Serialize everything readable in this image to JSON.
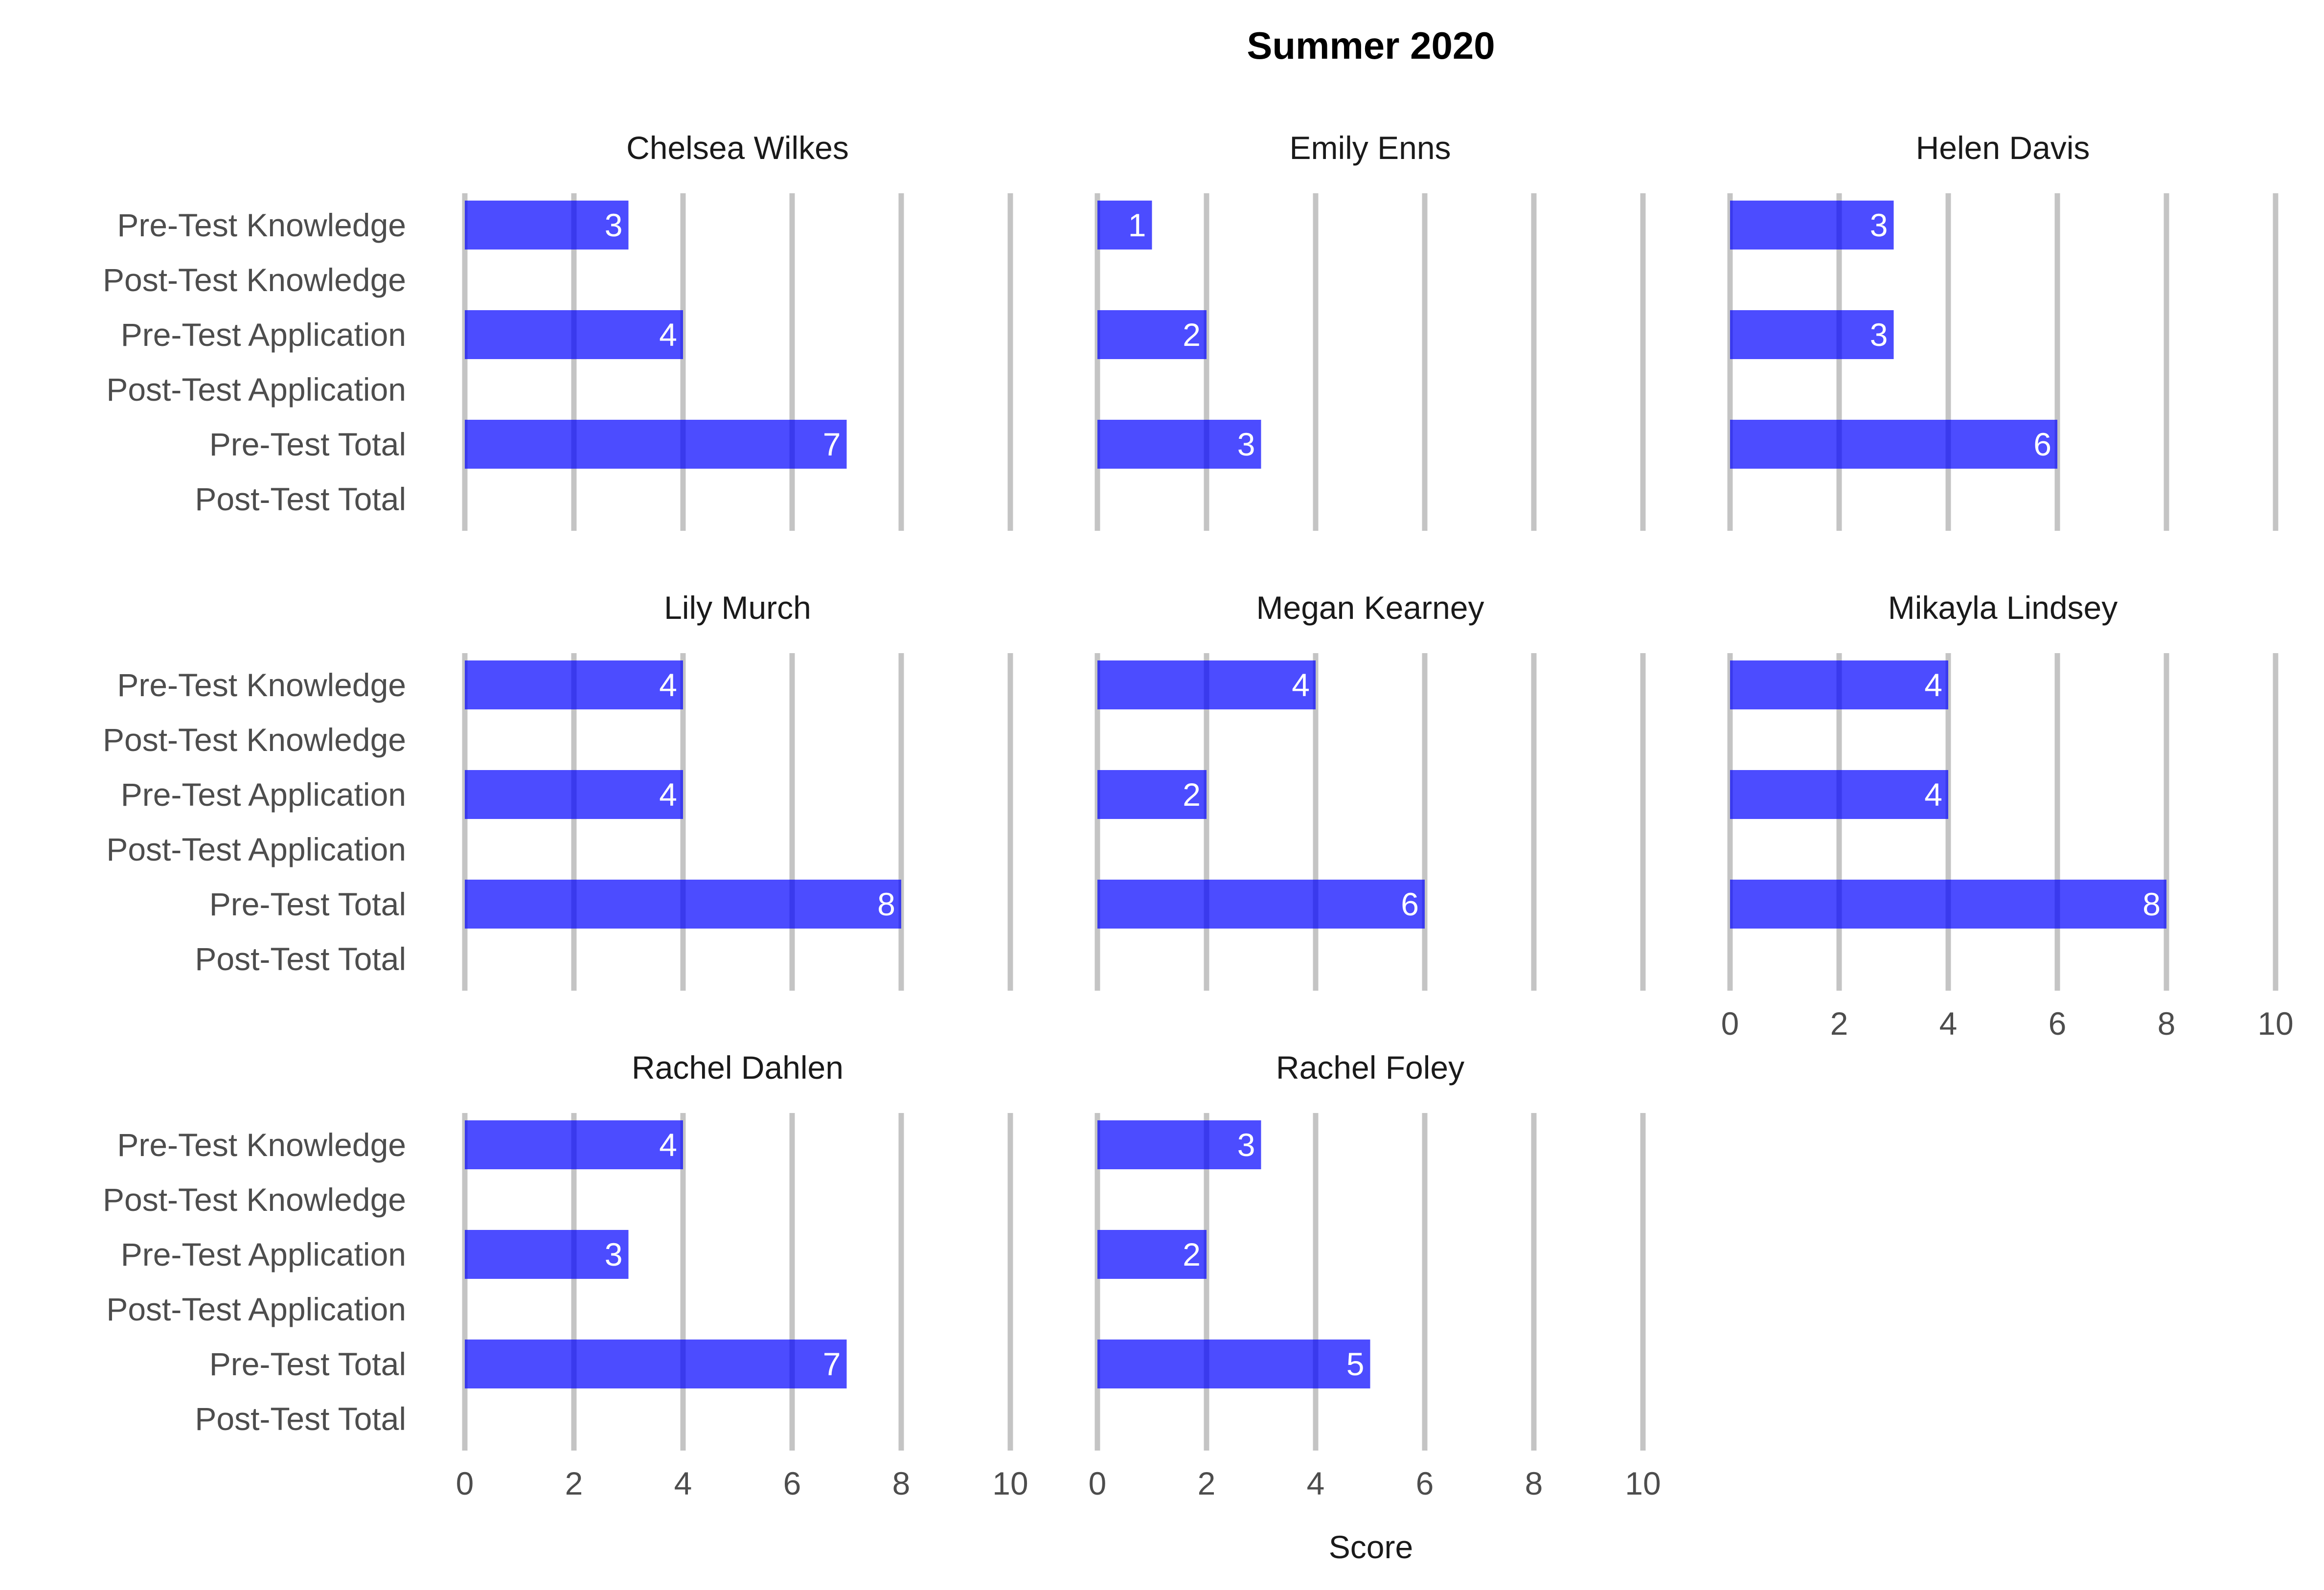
{
  "chart_data": {
    "type": "bar",
    "orientation": "horizontal",
    "title": "Summer 2020",
    "xlabel": "Score",
    "xlim": [
      0,
      10
    ],
    "xticks": [
      "0",
      "2",
      "4",
      "6",
      "8",
      "10"
    ],
    "grid": "vertical",
    "bar_color": "#0000ff",
    "categories": [
      "Pre-Test Knowledge",
      "Post-Test Knowledge",
      "Pre-Test Application",
      "Post-Test Application",
      "Pre-Test Total",
      "Post-Test Total"
    ],
    "panels": [
      {
        "name": "Chelsea Wilkes",
        "values": [
          3,
          null,
          4,
          null,
          7,
          null
        ]
      },
      {
        "name": "Emily Enns",
        "values": [
          1,
          null,
          2,
          null,
          3,
          null
        ]
      },
      {
        "name": "Helen Davis",
        "values": [
          3,
          null,
          3,
          null,
          6,
          null
        ]
      },
      {
        "name": "Lily Murch",
        "values": [
          4,
          null,
          4,
          null,
          8,
          null
        ]
      },
      {
        "name": "Megan Kearney",
        "values": [
          4,
          null,
          2,
          null,
          6,
          null
        ]
      },
      {
        "name": "Mikayla Lindsey",
        "values": [
          4,
          null,
          4,
          null,
          8,
          null
        ]
      },
      {
        "name": "Rachel Dahlen",
        "values": [
          4,
          null,
          3,
          null,
          7,
          null
        ]
      },
      {
        "name": "Rachel Foley",
        "values": [
          3,
          null,
          2,
          null,
          5,
          null
        ]
      }
    ]
  }
}
